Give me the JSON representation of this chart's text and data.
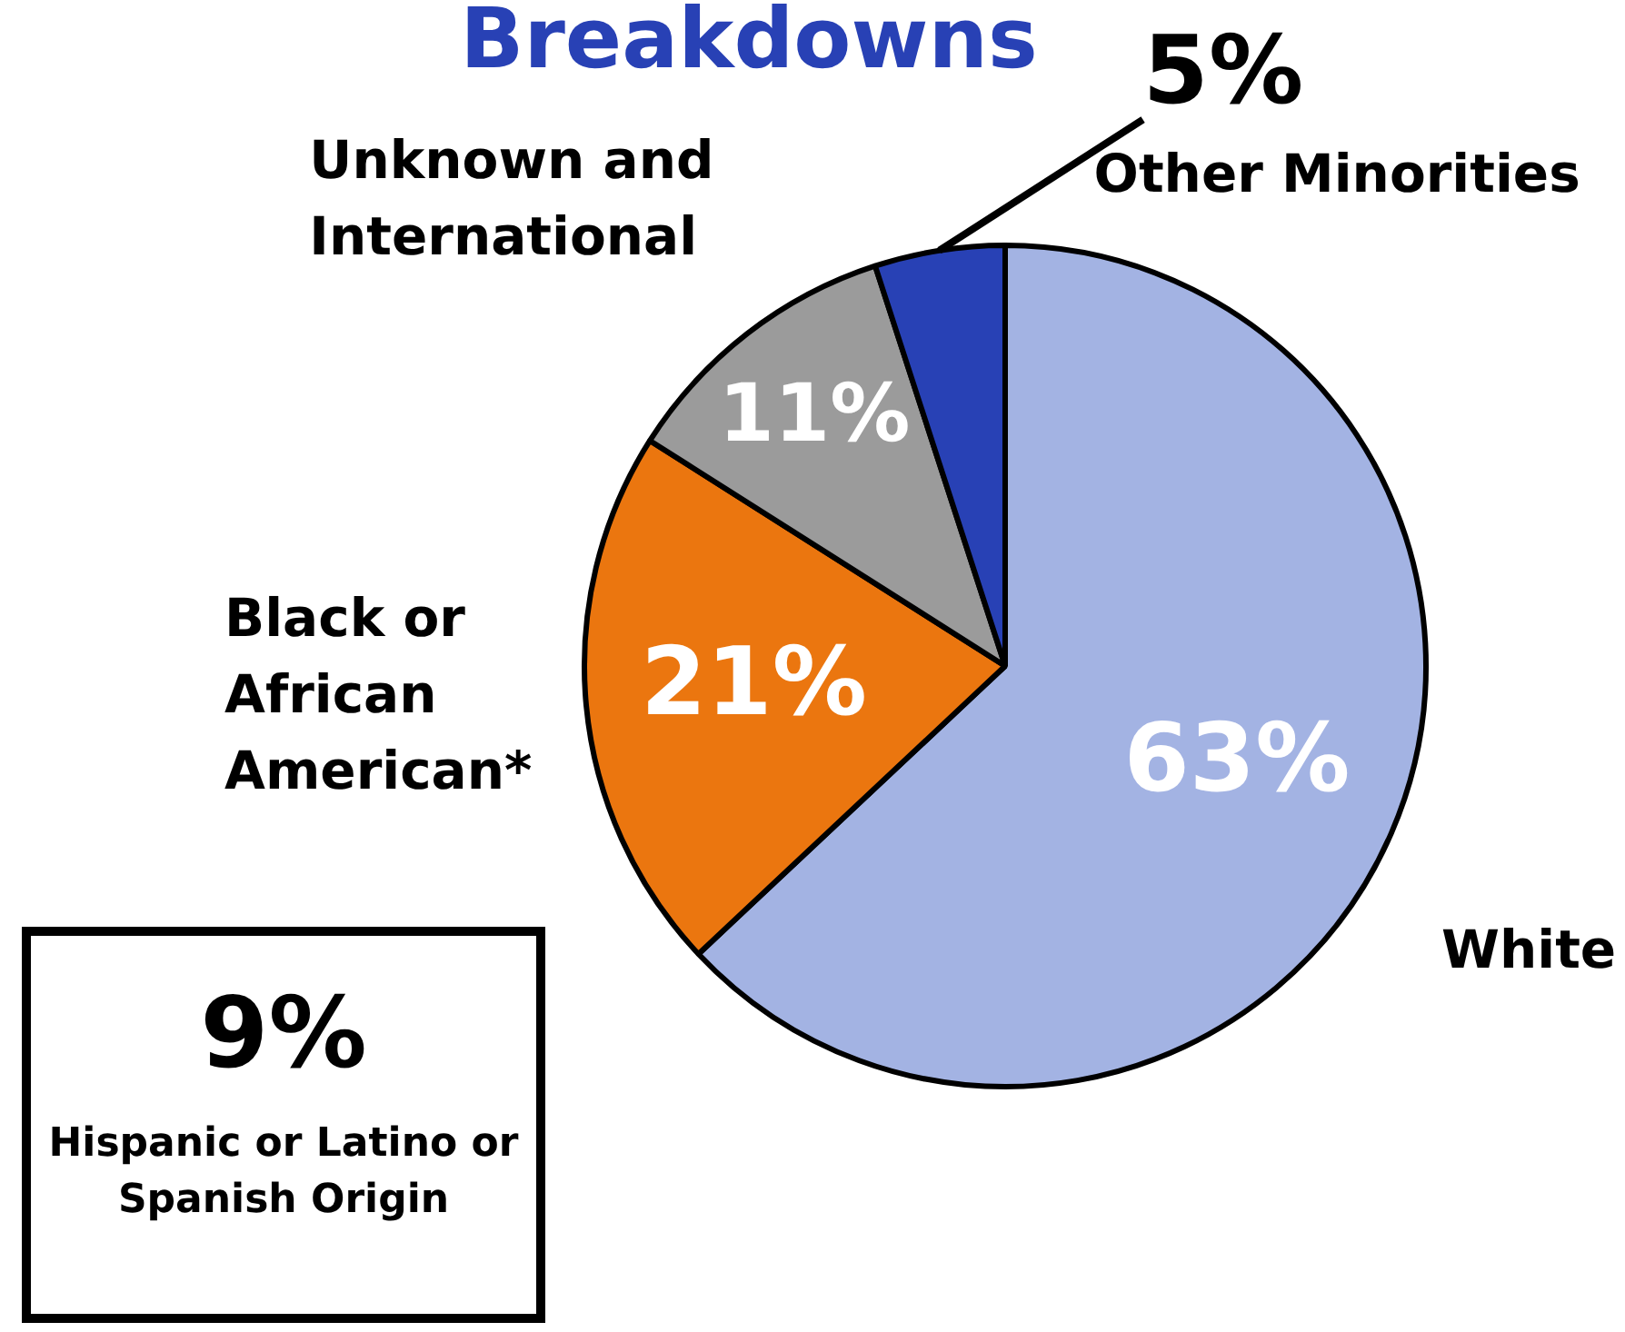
{
  "chart_data": {
    "type": "pie",
    "title": "Breakdowns",
    "categories": [
      "White",
      "Black or African American*",
      "Unknown and International",
      "Other Minorities"
    ],
    "values": [
      63,
      21,
      11,
      5
    ],
    "colors": [
      "#a3b3e3",
      "#eb760f",
      "#9b9b9b",
      "#2841b5"
    ],
    "value_labels": [
      "63%",
      "21%",
      "11%",
      "5%"
    ],
    "legend": false,
    "annotations": [
      "9%",
      "Hispanic or Latino or Spanish Origin"
    ]
  }
}
